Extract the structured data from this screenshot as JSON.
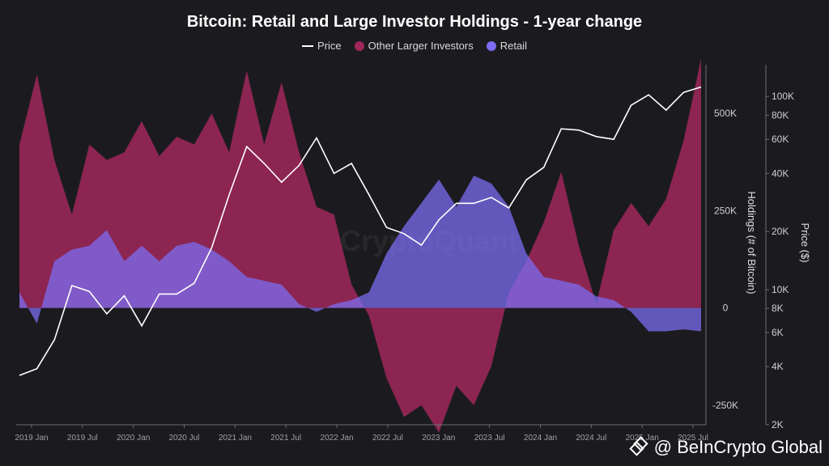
{
  "title": "Bitcoin: Retail and Large Investor Holdings - 1-year change",
  "legend": {
    "price": "Price",
    "large": "Other Larger Investors",
    "retail": "Retail"
  },
  "colors": {
    "price": "#ffffff",
    "large": "#a0275a",
    "retail": "#7b6cf0",
    "background": "#1b1b1f"
  },
  "watermark": "CryptoQuant",
  "credit": "@ BeInCrypto Global",
  "chart_data": {
    "type": "area",
    "title": "Bitcoin: Retail and Large Investor Holdings - 1-year change",
    "x_tick_labels": [
      "2019 Jan",
      "2019 Jul",
      "2020 Jan",
      "2020 Jul",
      "2021 Jan",
      "2021 Jul",
      "2022 Jan",
      "2022 Jul",
      "2023 Jan",
      "2023 Jul",
      "2024 Jan",
      "2024 Jul",
      "2025 Jan",
      "2025 Jul"
    ],
    "y_left": {
      "label": "Holdings (# of Bitcoin)",
      "ticks": [
        "500K",
        "250K",
        "0",
        "-250K"
      ],
      "tick_values": [
        500000,
        250000,
        0,
        -250000
      ],
      "range": [
        -300000,
        600000
      ]
    },
    "y_right": {
      "label": "Price ($)",
      "scale": "log",
      "ticks": [
        "100K",
        "80K",
        "60K",
        "40K",
        "20K",
        "10K",
        "8K",
        "6K",
        "4K",
        "2K"
      ],
      "tick_values": [
        100000,
        80000,
        60000,
        40000,
        20000,
        10000,
        8000,
        6000,
        4000,
        2000
      ],
      "range": [
        2000,
        130000
      ]
    },
    "x": [
      "2019-01",
      "2019-03",
      "2019-05",
      "2019-07",
      "2019-09",
      "2019-11",
      "2020-01",
      "2020-03",
      "2020-05",
      "2020-07",
      "2020-09",
      "2020-11",
      "2021-01",
      "2021-03",
      "2021-05",
      "2021-07",
      "2021-09",
      "2021-11",
      "2022-01",
      "2022-03",
      "2022-05",
      "2022-07",
      "2022-09",
      "2022-11",
      "2023-01",
      "2023-03",
      "2023-05",
      "2023-07",
      "2023-09",
      "2023-11",
      "2024-01",
      "2024-03",
      "2024-05",
      "2024-07",
      "2024-09",
      "2024-11",
      "2025-01",
      "2025-03",
      "2025-05",
      "2025-07"
    ],
    "series": [
      {
        "name": "Other Larger Investors",
        "values": [
          420000,
          600000,
          380000,
          240000,
          420000,
          380000,
          400000,
          480000,
          390000,
          440000,
          420000,
          500000,
          400000,
          610000,
          420000,
          580000,
          400000,
          260000,
          240000,
          60000,
          -20000,
          -180000,
          -280000,
          -250000,
          -320000,
          -200000,
          -250000,
          -150000,
          40000,
          120000,
          220000,
          350000,
          160000,
          10000,
          200000,
          270000,
          210000,
          280000,
          430000,
          640000
        ]
      },
      {
        "name": "Retail",
        "values": [
          40000,
          -40000,
          120000,
          150000,
          160000,
          200000,
          120000,
          160000,
          120000,
          160000,
          170000,
          150000,
          120000,
          80000,
          70000,
          60000,
          10000,
          -10000,
          10000,
          20000,
          40000,
          140000,
          210000,
          270000,
          330000,
          260000,
          340000,
          320000,
          260000,
          140000,
          80000,
          70000,
          60000,
          30000,
          20000,
          -10000,
          -60000,
          -60000,
          -55000,
          -60000
        ]
      },
      {
        "name": "Price",
        "values": [
          3600,
          3900,
          5500,
          10500,
          9800,
          7500,
          9300,
          6500,
          9500,
          9500,
          10800,
          16500,
          31000,
          55000,
          45000,
          36000,
          44000,
          61000,
          40000,
          45000,
          31000,
          21000,
          19500,
          17000,
          23000,
          28000,
          28000,
          30000,
          26500,
          37000,
          43000,
          68000,
          67000,
          62000,
          60000,
          90000,
          102000,
          85000,
          105000,
          112000
        ]
      }
    ]
  }
}
